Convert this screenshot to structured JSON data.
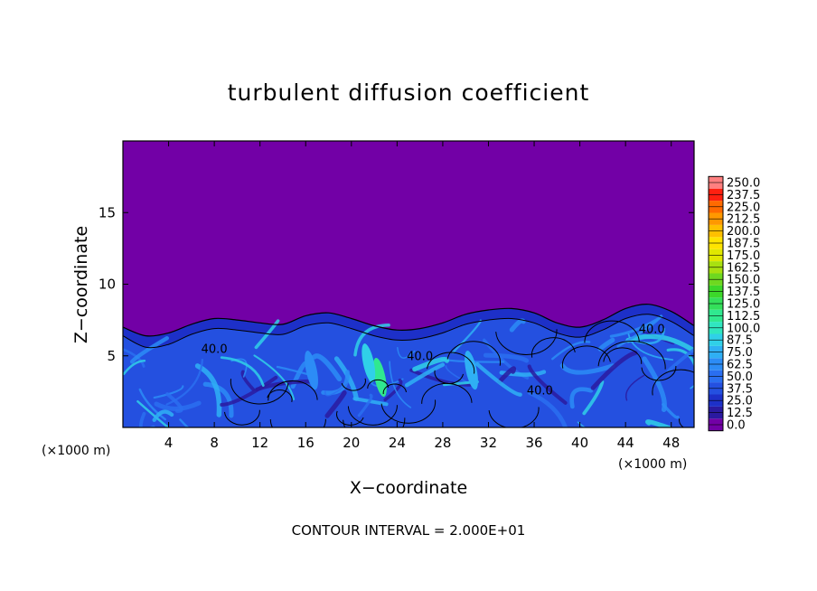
{
  "chart_data": {
    "type": "heatmap",
    "title": "turbulent diffusion coefficient",
    "xlabel": "X−coordinate",
    "ylabel": "Z−coordinate",
    "x_unit": "(×1000 m)",
    "y_unit": "(×1000 m)",
    "xlim": [
      0,
      50
    ],
    "ylim": [
      0,
      20
    ],
    "x_ticks": [
      4,
      8,
      12,
      16,
      20,
      24,
      28,
      32,
      36,
      40,
      44,
      48
    ],
    "y_ticks": [
      5,
      10,
      15
    ],
    "contour_interval_text": "CONTOUR INTERVAL = 2.000E+01",
    "contour_labels": [
      {
        "text": "40.0",
        "x": 8,
        "y": 5.2
      },
      {
        "text": "40.0",
        "x": 26,
        "y": 4.7
      },
      {
        "text": "40.0",
        "x": 36.5,
        "y": 2.3
      },
      {
        "text": "40.0",
        "x": 46.3,
        "y": 6.6
      }
    ],
    "colorbar": {
      "levels": [
        "0.0",
        "12.5",
        "25.0",
        "37.5",
        "50.0",
        "62.5",
        "75.0",
        "87.5",
        "100.0",
        "112.5",
        "125.0",
        "137.5",
        "150.0",
        "162.5",
        "175.0",
        "187.5",
        "200.0",
        "212.5",
        "225.0",
        "237.5",
        "250.0"
      ],
      "colors": [
        "#7200a6",
        "#2a1aa0",
        "#1d30c8",
        "#2450e0",
        "#2a6ef0",
        "#2c8cf6",
        "#2fb0f4",
        "#30d0e8",
        "#30e6c0",
        "#30e890",
        "#34e05a",
        "#3cd82a",
        "#6ed820",
        "#a8e010",
        "#e0e800",
        "#ffe400",
        "#ffc000",
        "#ff9800",
        "#ff6a00",
        "#ff2010",
        "#ff8080"
      ]
    },
    "envelope_top": [
      [
        0,
        7.0
      ],
      [
        2,
        6.4
      ],
      [
        4,
        6.6
      ],
      [
        6,
        7.2
      ],
      [
        8,
        7.6
      ],
      [
        10,
        7.5
      ],
      [
        12,
        7.3
      ],
      [
        14,
        7.2
      ],
      [
        16,
        7.8
      ],
      [
        18,
        8.0
      ],
      [
        20,
        7.6
      ],
      [
        22,
        7.1
      ],
      [
        24,
        6.8
      ],
      [
        26,
        6.9
      ],
      [
        28,
        7.3
      ],
      [
        30,
        7.9
      ],
      [
        32,
        8.2
      ],
      [
        34,
        8.3
      ],
      [
        36,
        8.0
      ],
      [
        38,
        7.3
      ],
      [
        40,
        7.0
      ],
      [
        42,
        7.5
      ],
      [
        44,
        8.3
      ],
      [
        46,
        8.6
      ],
      [
        48,
        8.1
      ],
      [
        50,
        7.1
      ]
    ],
    "inner_contour_top": [
      [
        0,
        6.4
      ],
      [
        2,
        5.6
      ],
      [
        4,
        5.8
      ],
      [
        6,
        6.5
      ],
      [
        8,
        6.9
      ],
      [
        10,
        6.8
      ],
      [
        12,
        6.6
      ],
      [
        14,
        6.5
      ],
      [
        16,
        7.1
      ],
      [
        18,
        7.3
      ],
      [
        20,
        6.9
      ],
      [
        22,
        6.4
      ],
      [
        24,
        6.1
      ],
      [
        26,
        6.2
      ],
      [
        28,
        6.6
      ],
      [
        30,
        7.2
      ],
      [
        32,
        7.5
      ],
      [
        34,
        7.6
      ],
      [
        36,
        7.3
      ],
      [
        38,
        6.6
      ],
      [
        40,
        6.3
      ],
      [
        42,
        6.8
      ],
      [
        44,
        7.6
      ],
      [
        46,
        7.9
      ],
      [
        48,
        7.4
      ],
      [
        50,
        6.4
      ]
    ],
    "high_value_regions": [
      {
        "x": 22.5,
        "y": 3.5,
        "level": "112.5"
      },
      {
        "x": 21.5,
        "y": 4.5,
        "level": "87.5"
      },
      {
        "x": 30.5,
        "y": 4.0,
        "level": "75.0"
      },
      {
        "x": 16.5,
        "y": 4.0,
        "level": "62.5"
      }
    ]
  }
}
